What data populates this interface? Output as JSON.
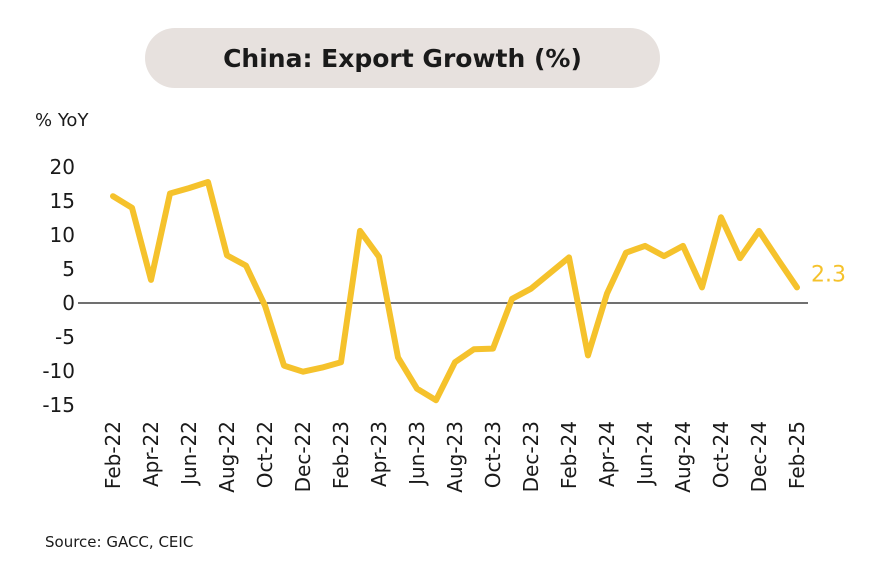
{
  "chart_data": {
    "type": "line",
    "title": "China: Export Growth (%)",
    "ylabel": "% YoY",
    "xlabel": "",
    "ylim": [
      -15,
      20
    ],
    "yticks": [
      20,
      15,
      10,
      5,
      0,
      -5,
      -10,
      -15
    ],
    "x": [
      "Feb-22",
      "Mar-22",
      "Apr-22",
      "May-22",
      "Jun-22",
      "Jul-22",
      "Aug-22",
      "Sep-22",
      "Oct-22",
      "Nov-22",
      "Dec-22",
      "Jan-23",
      "Feb-23",
      "Mar-23",
      "Apr-23",
      "May-23",
      "Jun-23",
      "Jul-23",
      "Aug-23",
      "Sep-23",
      "Oct-23",
      "Nov-23",
      "Dec-23",
      "Jan-24",
      "Feb-24",
      "Mar-24",
      "Apr-24",
      "May-24",
      "Jun-24",
      "Jul-24",
      "Aug-24",
      "Sep-24",
      "Oct-24",
      "Nov-24",
      "Dec-24",
      "Jan-25",
      "Feb-25"
    ],
    "xtick_labels": [
      "Feb-22",
      "Apr-22",
      "Jun-22",
      "Aug-22",
      "Oct-22",
      "Dec-22",
      "Feb-23",
      "Apr-23",
      "Jun-23",
      "Aug-23",
      "Oct-23",
      "Dec-23",
      "Feb-24",
      "Apr-24",
      "Jun-24",
      "Aug-24",
      "Oct-24",
      "Dec-24",
      "Feb-25"
    ],
    "series": [
      {
        "name": "",
        "color": "#f5c22c",
        "values": [
          15.7,
          14.0,
          3.4,
          16.1,
          16.9,
          17.8,
          7.0,
          5.5,
          -0.4,
          -9.2,
          -10.1,
          -9.5,
          -8.7,
          10.6,
          6.8,
          -8.0,
          -12.6,
          -14.3,
          -8.7,
          -6.8,
          -6.7,
          0.6,
          2.1,
          4.4,
          6.7,
          -7.7,
          1.4,
          7.4,
          8.4,
          6.9,
          8.4,
          2.3,
          12.6,
          6.6,
          10.6,
          6.4,
          2.3
        ]
      }
    ],
    "last_value_label": "2.3",
    "zero_line": true,
    "grid": false,
    "legend": "none"
  },
  "source": "Source: GACC, CEIC"
}
